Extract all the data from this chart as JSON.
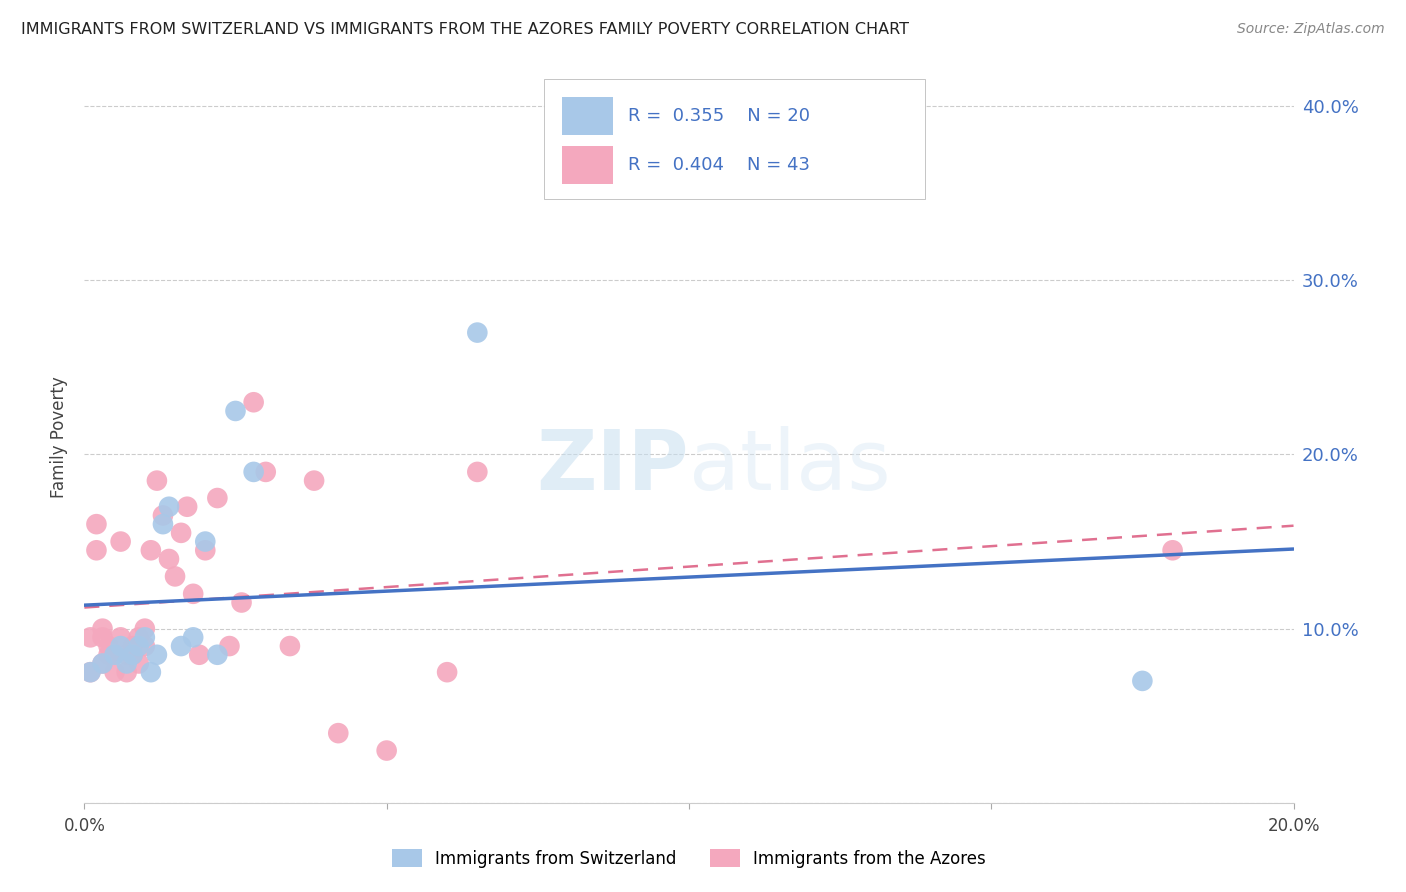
{
  "title": "IMMIGRANTS FROM SWITZERLAND VS IMMIGRANTS FROM THE AZORES FAMILY POVERTY CORRELATION CHART",
  "source": "Source: ZipAtlas.com",
  "ylabel": "Family Poverty",
  "xlim": [
    0.0,
    0.2
  ],
  "ylim": [
    0.0,
    0.42
  ],
  "xticks": [
    0.0,
    0.05,
    0.1,
    0.15,
    0.2
  ],
  "yticks": [
    0.0,
    0.1,
    0.2,
    0.3,
    0.4
  ],
  "ytick_labels_right": [
    "",
    "10.0%",
    "20.0%",
    "30.0%",
    "40.0%"
  ],
  "xtick_labels": [
    "0.0%",
    "",
    "",
    "",
    "20.0%"
  ],
  "watermark": "ZIPatlas",
  "legend_label1": "Immigrants from Switzerland",
  "legend_label2": "Immigrants from the Azores",
  "R1": 0.355,
  "N1": 20,
  "R2": 0.404,
  "N2": 43,
  "color_swiss": "#a8c8e8",
  "color_azores": "#f4a8be",
  "line_color_swiss": "#4472c4",
  "line_color_azores": "#e07090",
  "background": "#ffffff",
  "swiss_x": [
    0.001,
    0.003,
    0.005,
    0.006,
    0.007,
    0.008,
    0.009,
    0.01,
    0.011,
    0.012,
    0.013,
    0.014,
    0.016,
    0.018,
    0.02,
    0.022,
    0.025,
    0.028,
    0.065,
    0.175
  ],
  "swiss_y": [
    0.075,
    0.08,
    0.085,
    0.09,
    0.08,
    0.085,
    0.09,
    0.095,
    0.075,
    0.085,
    0.16,
    0.17,
    0.09,
    0.095,
    0.15,
    0.085,
    0.225,
    0.19,
    0.27,
    0.07
  ],
  "azores_x": [
    0.001,
    0.001,
    0.002,
    0.002,
    0.003,
    0.003,
    0.003,
    0.004,
    0.004,
    0.005,
    0.005,
    0.006,
    0.006,
    0.007,
    0.007,
    0.008,
    0.008,
    0.009,
    0.009,
    0.01,
    0.01,
    0.011,
    0.012,
    0.013,
    0.014,
    0.015,
    0.016,
    0.017,
    0.018,
    0.019,
    0.02,
    0.022,
    0.024,
    0.026,
    0.028,
    0.03,
    0.034,
    0.038,
    0.042,
    0.05,
    0.06,
    0.065,
    0.18
  ],
  "azores_y": [
    0.095,
    0.075,
    0.16,
    0.145,
    0.095,
    0.1,
    0.08,
    0.09,
    0.085,
    0.085,
    0.075,
    0.15,
    0.095,
    0.075,
    0.085,
    0.085,
    0.09,
    0.095,
    0.08,
    0.1,
    0.09,
    0.145,
    0.185,
    0.165,
    0.14,
    0.13,
    0.155,
    0.17,
    0.12,
    0.085,
    0.145,
    0.175,
    0.09,
    0.115,
    0.23,
    0.19,
    0.09,
    0.185,
    0.04,
    0.03,
    0.075,
    0.19,
    0.145
  ]
}
